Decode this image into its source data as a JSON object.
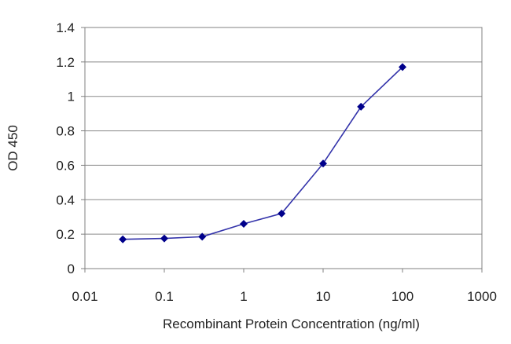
{
  "chart_data": {
    "type": "line",
    "title": "",
    "xlabel": "Recombinant Protein Concentration (ng/ml)",
    "ylabel": "OD 450",
    "x_scale": "log",
    "xlim": [
      0.01,
      1000
    ],
    "ylim": [
      0,
      1.4
    ],
    "x_ticks": [
      0.01,
      0.1,
      1,
      10,
      100,
      1000
    ],
    "x_tick_labels": [
      "0.01",
      "0.1",
      "1",
      "10",
      "100",
      "1000"
    ],
    "y_ticks": [
      0,
      0.2,
      0.4,
      0.6,
      0.8,
      1,
      1.2,
      1.4
    ],
    "y_tick_labels": [
      "0",
      "0.2",
      "0.4",
      "0.6",
      "0.8",
      "1",
      "1.2",
      "1.4"
    ],
    "grid": "horizontal",
    "legend": "none",
    "series": [
      {
        "x": [
          0.03,
          0.1,
          0.3,
          1,
          3,
          10,
          30,
          100
        ],
        "y": [
          0.17,
          0.175,
          0.185,
          0.26,
          0.32,
          0.61,
          0.94,
          1.17
        ],
        "color": "#3333aa",
        "marker_color": "#00008b"
      }
    ]
  }
}
